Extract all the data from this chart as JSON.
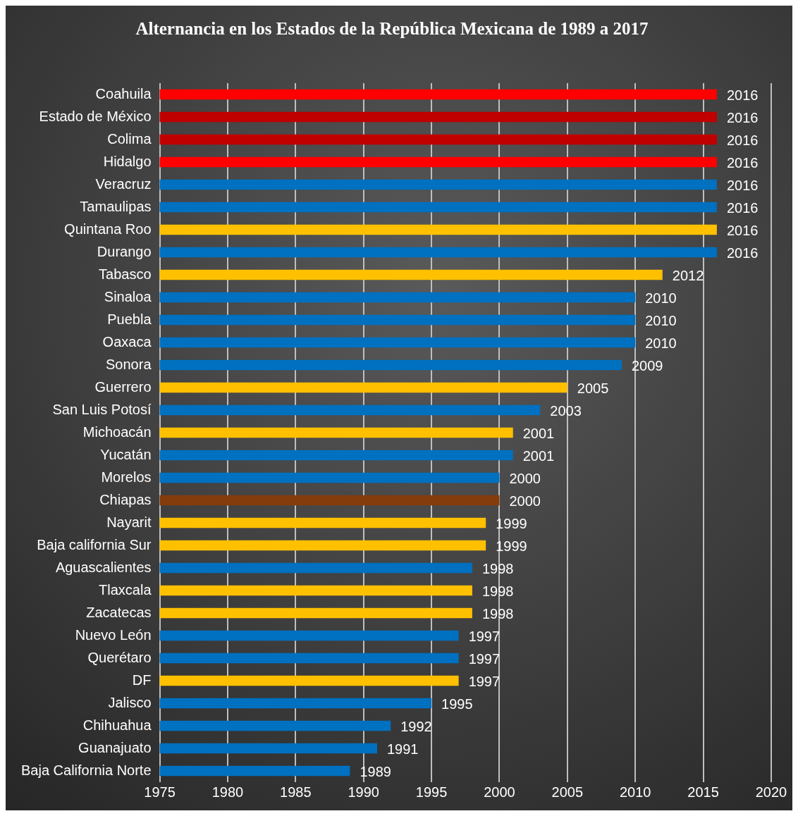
{
  "chart_data": {
    "type": "bar",
    "orientation": "horizontal",
    "title": "Alternancia en los Estados de la República Mexicana de 1989 a 2017",
    "categories": [
      "Coahuila",
      "Estado de México",
      "Colima",
      "Hidalgo",
      "Veracruz",
      "Tamaulipas",
      "Quintana Roo",
      "Durango",
      "Tabasco",
      "Sinaloa",
      "Puebla",
      "Oaxaca",
      "Sonora",
      "Guerrero",
      "San Luis Potosí",
      "Michoacán",
      "Yucatán",
      "Morelos",
      "Chiapas",
      "Nayarit",
      "Baja california Sur",
      "Aguascalientes",
      "Tlaxcala",
      "Zacatecas",
      "Nuevo León",
      "Querétaro",
      "DF",
      "Jalisco",
      "Chihuahua",
      "Guanajuato",
      "Baja California Norte"
    ],
    "values": [
      2016,
      2016,
      2016,
      2016,
      2016,
      2016,
      2016,
      2016,
      2012,
      2010,
      2010,
      2010,
      2009,
      2005,
      2003,
      2001,
      2001,
      2000,
      2000,
      1999,
      1999,
      1998,
      1998,
      1998,
      1997,
      1997,
      1997,
      1995,
      1992,
      1991,
      1989
    ],
    "colors": [
      "#ff0000",
      "#c00000",
      "#c00000",
      "#ff0000",
      "#0070c0",
      "#0070c0",
      "#ffc000",
      "#0070c0",
      "#ffc000",
      "#0070c0",
      "#0070c0",
      "#0070c0",
      "#0070c0",
      "#ffc000",
      "#0070c0",
      "#ffc000",
      "#0070c0",
      "#0070c0",
      "#843c0c",
      "#ffc000",
      "#ffc000",
      "#0070c0",
      "#ffc000",
      "#ffc000",
      "#0070c0",
      "#0070c0",
      "#ffc000",
      "#0070c0",
      "#0070c0",
      "#0070c0",
      "#0070c0"
    ],
    "xlim": [
      1975,
      2020
    ],
    "xticks": [
      1975,
      1980,
      1985,
      1990,
      1995,
      2000,
      2005,
      2010,
      2015,
      2020
    ],
    "grid": "x",
    "data_labels": true,
    "legend": false
  }
}
